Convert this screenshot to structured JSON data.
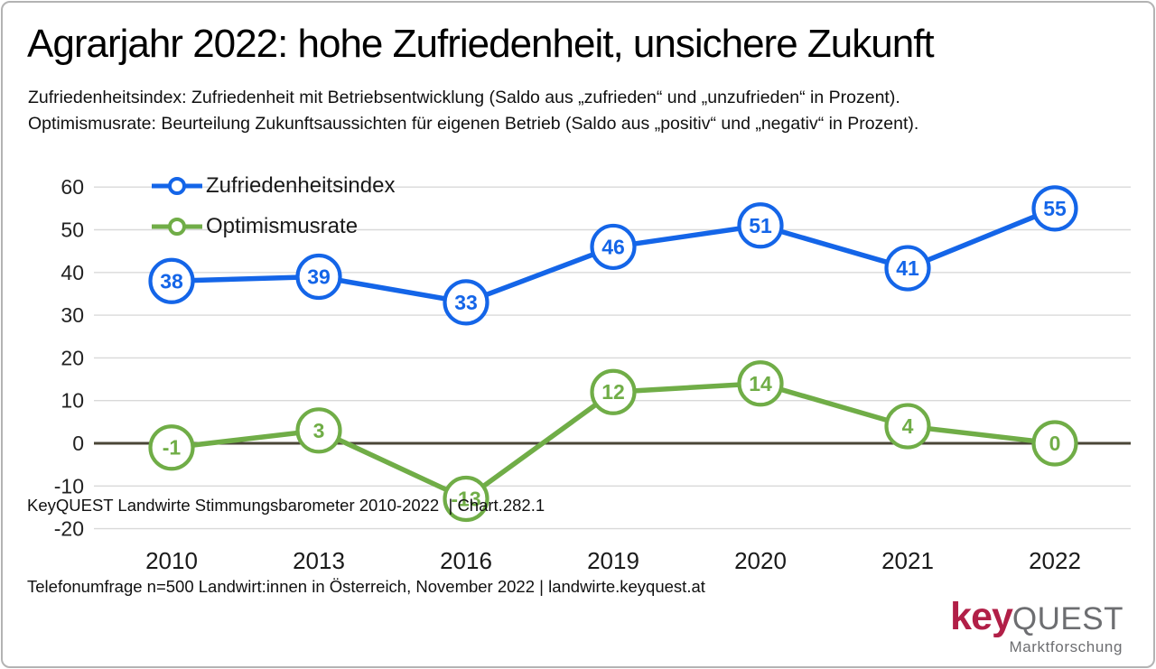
{
  "title": "Agrarjahr 2022: hohe Zufriedenheit, unsichere Zukunft",
  "subtitle_line1": "Zufriedenheitsindex: Zufriedenheit mit Betriebsentwicklung (Saldo aus „zufrieden“ und „unzufrieden“ in Prozent).",
  "subtitle_line2": "Optimismusrate: Beurteilung Zukunftsaussichten für eigenen Betrieb (Saldo aus „positiv“ und „negativ“ in Prozent).",
  "chart_data": {
    "type": "line",
    "title": "Agrarjahr 2022: hohe Zufriedenheit, unsichere Zukunft",
    "categories": [
      "2010",
      "2013",
      "2016",
      "2019",
      "2020",
      "2021",
      "2022"
    ],
    "series": [
      {
        "name": "Zufriedenheitsindex",
        "color": "#1465e8",
        "values": [
          38,
          39,
          33,
          46,
          51,
          41,
          55
        ]
      },
      {
        "name": "Optimismusrate",
        "color": "#70ad47",
        "values": [
          -1,
          3,
          -13,
          12,
          14,
          4,
          0
        ]
      }
    ],
    "xlabel": "",
    "ylabel": "",
    "ylim": [
      -20,
      60
    ],
    "yticks": [
      60,
      50,
      40,
      30,
      20,
      10,
      0,
      -10,
      -20
    ],
    "grid": "horizontal",
    "grid_color": "#d9d9d9",
    "zero_line_color": "#4a4637",
    "legend_position": "top-left-inside",
    "marker": "open-circle-with-value-label"
  },
  "footer": {
    "line1": "KeyQUEST Landwirte Stimmungsbarometer 2010-2022  | Chart.282.1",
    "line2": "Telefonumfrage n=500 Landwirt:innen in Österreich, November 2022 | landwirte.keyquest.at"
  },
  "logo": {
    "part1": "key",
    "part2": "QUEST",
    "subtext": "Marktforschung",
    "color_key": "#b11f47",
    "color_quest": "#6d6e71"
  }
}
